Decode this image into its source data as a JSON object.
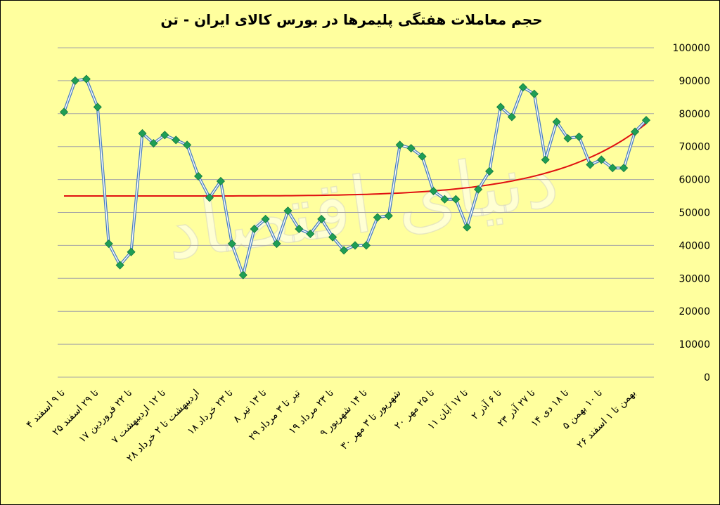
{
  "chart_data": {
    "type": "line",
    "title": "حجم معاملات هفتگی پلیمرها در بورس کالای ایران - تن",
    "xlabel": "",
    "ylabel": "",
    "ylim": [
      0,
      100000
    ],
    "yticks": [
      0,
      10000,
      20000,
      30000,
      40000,
      50000,
      60000,
      70000,
      80000,
      90000,
      100000
    ],
    "ytick_labels": [
      "0",
      "10000",
      "20000",
      "30000",
      "40000",
      "50000",
      "60000",
      "70000",
      "80000",
      "90000",
      "100000"
    ],
    "grid": true,
    "x_tick_labels": [
      "۴ تا ۹ اسفند",
      "۲۵ تا ۲۹ اسفند",
      "۱۷ تا ۲۲ فروردین",
      "۷ تا ۱۲ اردیبهشت",
      "۲۸ اردیبهشت تا ۲ خرداد",
      "۱۸ تا ۲۳ خرداد",
      "۸ تا ۱۳ تیر",
      "۲۹ تیر تا ۳ مرداد",
      "۱۹ تا ۲۳ مرداد",
      "۹ تا ۱۴ شهریور",
      "۳۰ شهریور تا ۳ مهر",
      "۲۰ تا ۲۵ مهر",
      "۱۱ تا ۱۷ آبان",
      "۲ تا ۶ آذر",
      "۲۳ تا ۲۷ آذر",
      "۱۴ تا ۱۸ دی",
      "۵ تا ۱۰ بهمن",
      "۲۶ بهمن تا ۱ اسفند"
    ],
    "series": [
      {
        "values": [
          80500,
          90000,
          90500,
          82000,
          40500,
          34000,
          38000,
          74000,
          71000,
          73500,
          72000,
          70500,
          61000,
          54500,
          59500,
          40500,
          31000,
          45000,
          48000,
          40500,
          50500,
          45000,
          43500,
          48000,
          42500,
          38500,
          40000,
          40000,
          48500,
          49000,
          70500,
          69500,
          67000,
          56500,
          54000,
          54000,
          45500,
          57000,
          62500,
          82000,
          79000,
          88000,
          86000,
          66000,
          77500,
          72500,
          73000,
          64500,
          66000,
          63500,
          63500,
          74500,
          78000
        ]
      }
    ],
    "trendline": {
      "type": "exponential",
      "start": 55000,
      "end": 77000
    },
    "colors": {
      "line_outer": "#4a7fc1",
      "line_inner": "#ffffff",
      "marker": "#1f9e55",
      "trend": "#e01010",
      "grid": "#a6a6a6",
      "background": "#ffff9e"
    }
  }
}
